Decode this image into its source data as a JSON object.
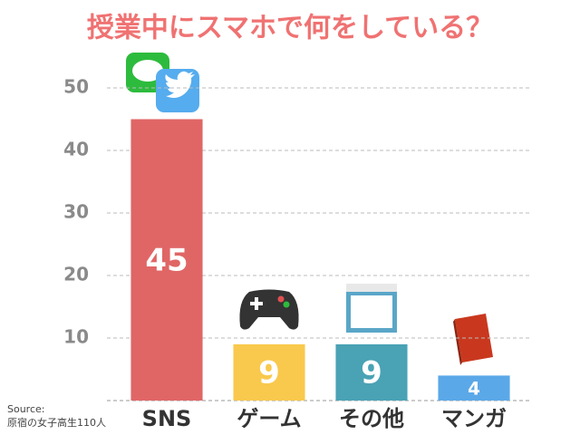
{
  "chart_data": {
    "type": "bar",
    "title": "授業中にスマホで何をしている？",
    "categories": [
      "SNS",
      "ゲーム",
      "その他",
      "マンガ"
    ],
    "values": [
      45,
      9,
      9,
      4
    ],
    "colors": [
      "#e06666",
      "#f9c94d",
      "#4aa2b5",
      "#5ba8e8"
    ],
    "ylim": [
      0,
      50
    ],
    "yticks": [
      10,
      20,
      30,
      40,
      50
    ],
    "grid": true,
    "source": [
      "Source:",
      "原宿の女子高生110人"
    ]
  }
}
